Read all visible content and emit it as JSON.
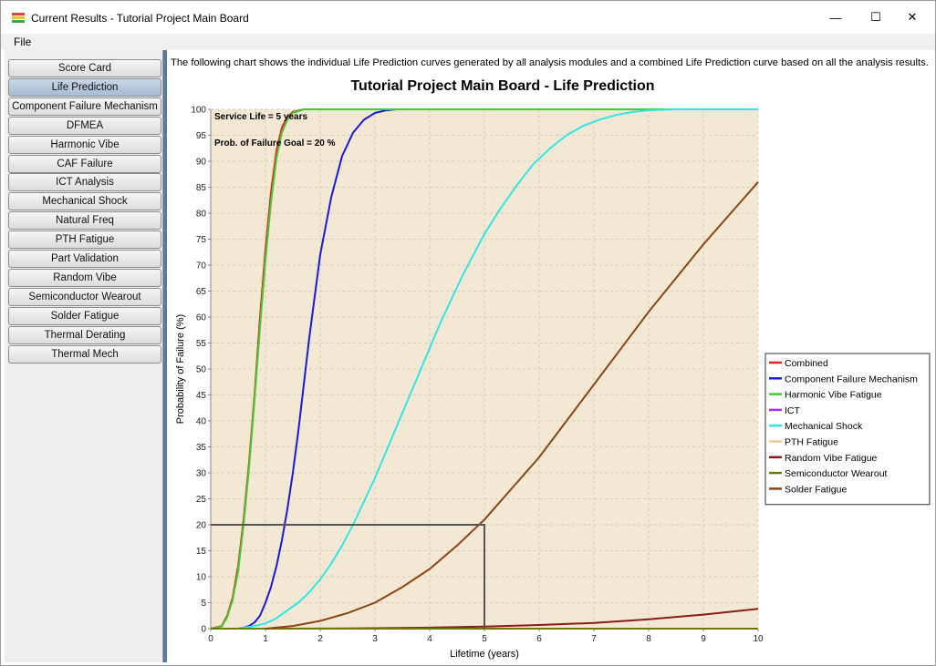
{
  "window": {
    "title": "Current Results - Tutorial Project Main Board",
    "controls": {
      "minimize": "—",
      "maximize": "☐",
      "close": "✕"
    }
  },
  "menu": {
    "file": "File"
  },
  "sidebar": {
    "items": [
      {
        "label": "Score Card",
        "active": false
      },
      {
        "label": "Life Prediction",
        "active": true
      },
      {
        "label": "Component Failure Mechanism",
        "active": false
      },
      {
        "label": "DFMEA",
        "active": false
      },
      {
        "label": "Harmonic Vibe",
        "active": false
      },
      {
        "label": "CAF Failure",
        "active": false
      },
      {
        "label": "ICT Analysis",
        "active": false
      },
      {
        "label": "Mechanical Shock",
        "active": false
      },
      {
        "label": "Natural Freq",
        "active": false
      },
      {
        "label": "PTH Fatigue",
        "active": false
      },
      {
        "label": "Part Validation",
        "active": false
      },
      {
        "label": "Random Vibe",
        "active": false
      },
      {
        "label": "Semiconductor Wearout",
        "active": false
      },
      {
        "label": "Solder Fatigue",
        "active": false
      },
      {
        "label": "Thermal Derating",
        "active": false
      },
      {
        "label": "Thermal Mech",
        "active": false
      }
    ]
  },
  "main": {
    "description": "The following chart shows the individual Life Prediction curves generated by all analysis modules and a combined Life Prediction curve based on all the analysis results."
  },
  "chart_data": {
    "type": "line",
    "title": "Tutorial Project Main Board - Life Prediction",
    "xlabel": "Lifetime (years)",
    "ylabel": "Probability of Failure (%)",
    "xlim": [
      0,
      10
    ],
    "ylim": [
      0,
      100
    ],
    "xticks": [
      0,
      1,
      2,
      3,
      4,
      5,
      6,
      7,
      8,
      9,
      10
    ],
    "yticks": [
      0,
      5,
      10,
      15,
      20,
      25,
      30,
      35,
      40,
      45,
      50,
      55,
      60,
      65,
      70,
      75,
      80,
      85,
      90,
      95,
      100
    ],
    "grid": true,
    "legend_position": "right",
    "annotations": [
      "Service Life = 5 years",
      "Prob. of Failure Goal = 20 %"
    ],
    "reference_lines": {
      "service_life_years": 5,
      "failure_goal_percent": 20
    },
    "colors": {
      "plot_background": "#f3e8d4",
      "reference_box": "#555555"
    },
    "series": [
      {
        "name": "Combined",
        "color": "#e0261e",
        "x": [
          0,
          0.2,
          0.3,
          0.4,
          0.5,
          0.6,
          0.7,
          0.8,
          0.9,
          1.0,
          1.1,
          1.2,
          1.3,
          1.4,
          1.5,
          1.7,
          2.0,
          10
        ],
        "y": [
          0,
          0.5,
          2.5,
          6,
          12,
          21,
          32,
          45,
          60,
          73,
          84,
          92,
          96.5,
          98.5,
          99.5,
          100,
          100,
          100
        ]
      },
      {
        "name": "Component Failure Mechanism",
        "color": "#1a1ad6",
        "x": [
          0.5,
          0.6,
          0.7,
          0.8,
          0.9,
          1.0,
          1.1,
          1.2,
          1.3,
          1.4,
          1.5,
          1.6,
          1.7,
          1.8,
          1.9,
          2.0,
          2.2,
          2.4,
          2.6,
          2.8,
          3.0,
          3.2,
          3.4,
          3.6,
          10
        ],
        "y": [
          0,
          0.2,
          0.5,
          1.2,
          2.5,
          5,
          8,
          12,
          17,
          23,
          30,
          38,
          47,
          56,
          64,
          72,
          83,
          91,
          95.5,
          98,
          99.3,
          99.8,
          100,
          100,
          100
        ]
      },
      {
        "name": "Harmonic Vibe Fatigue",
        "color": "#44cc33",
        "x": [
          0,
          0.2,
          0.3,
          0.4,
          0.5,
          0.6,
          0.7,
          0.8,
          0.9,
          1.0,
          1.1,
          1.2,
          1.3,
          1.4,
          1.5,
          1.7,
          2.0,
          10
        ],
        "y": [
          0,
          0.4,
          2.2,
          5.5,
          11,
          20,
          31,
          44,
          58,
          71,
          82,
          90.5,
          95.5,
          98,
          99.3,
          100,
          100,
          100
        ]
      },
      {
        "name": "ICT",
        "color": "#9933ff",
        "x": [
          0,
          5,
          10
        ],
        "y": [
          0,
          0,
          0
        ]
      },
      {
        "name": "Mechanical Shock",
        "color": "#33e6e6",
        "x": [
          0.5,
          0.8,
          1.0,
          1.2,
          1.4,
          1.6,
          1.8,
          2.0,
          2.2,
          2.4,
          2.6,
          2.8,
          3.0,
          3.2,
          3.4,
          3.6,
          3.8,
          4.0,
          4.2,
          4.4,
          4.6,
          4.8,
          5.0,
          5.3,
          5.6,
          5.9,
          6.2,
          6.5,
          6.8,
          7.1,
          7.4,
          7.7,
          8.0,
          8.5,
          9.0,
          10
        ],
        "y": [
          0,
          0.5,
          1,
          2,
          3.5,
          5,
          7,
          9.5,
          12.5,
          16,
          20,
          24.5,
          29,
          34,
          39,
          44,
          49,
          54,
          59,
          63.5,
          68,
          72,
          76,
          81,
          85.5,
          89.5,
          92.5,
          95,
          96.8,
          98,
          98.9,
          99.5,
          99.8,
          100,
          100,
          100
        ]
      },
      {
        "name": "PTH Fatigue",
        "color": "#f5c890",
        "x": [
          0,
          5,
          10
        ],
        "y": [
          0,
          0,
          0
        ]
      },
      {
        "name": "Random Vibe Fatigue",
        "color": "#8b1a1a",
        "x": [
          0,
          1,
          2,
          3,
          4,
          5,
          6,
          7,
          8,
          9,
          10
        ],
        "y": [
          0,
          0,
          0.02,
          0.08,
          0.2,
          0.4,
          0.7,
          1.1,
          1.8,
          2.7,
          3.8
        ]
      },
      {
        "name": "Semiconductor Wearout",
        "color": "#6b7a00",
        "x": [
          0,
          5,
          10
        ],
        "y": [
          0,
          0,
          0
        ]
      },
      {
        "name": "Solder Fatigue",
        "color": "#8b4513",
        "x": [
          1.0,
          1.5,
          2.0,
          2.5,
          3.0,
          3.5,
          4.0,
          4.5,
          5.0,
          5.5,
          6.0,
          6.5,
          7.0,
          7.5,
          8.0,
          8.5,
          9.0,
          9.5,
          10
        ],
        "y": [
          0,
          0.5,
          1.5,
          3,
          5,
          8,
          11.5,
          16,
          21,
          27,
          33,
          40,
          47,
          54,
          61,
          67.5,
          74,
          80,
          86
        ]
      }
    ]
  }
}
